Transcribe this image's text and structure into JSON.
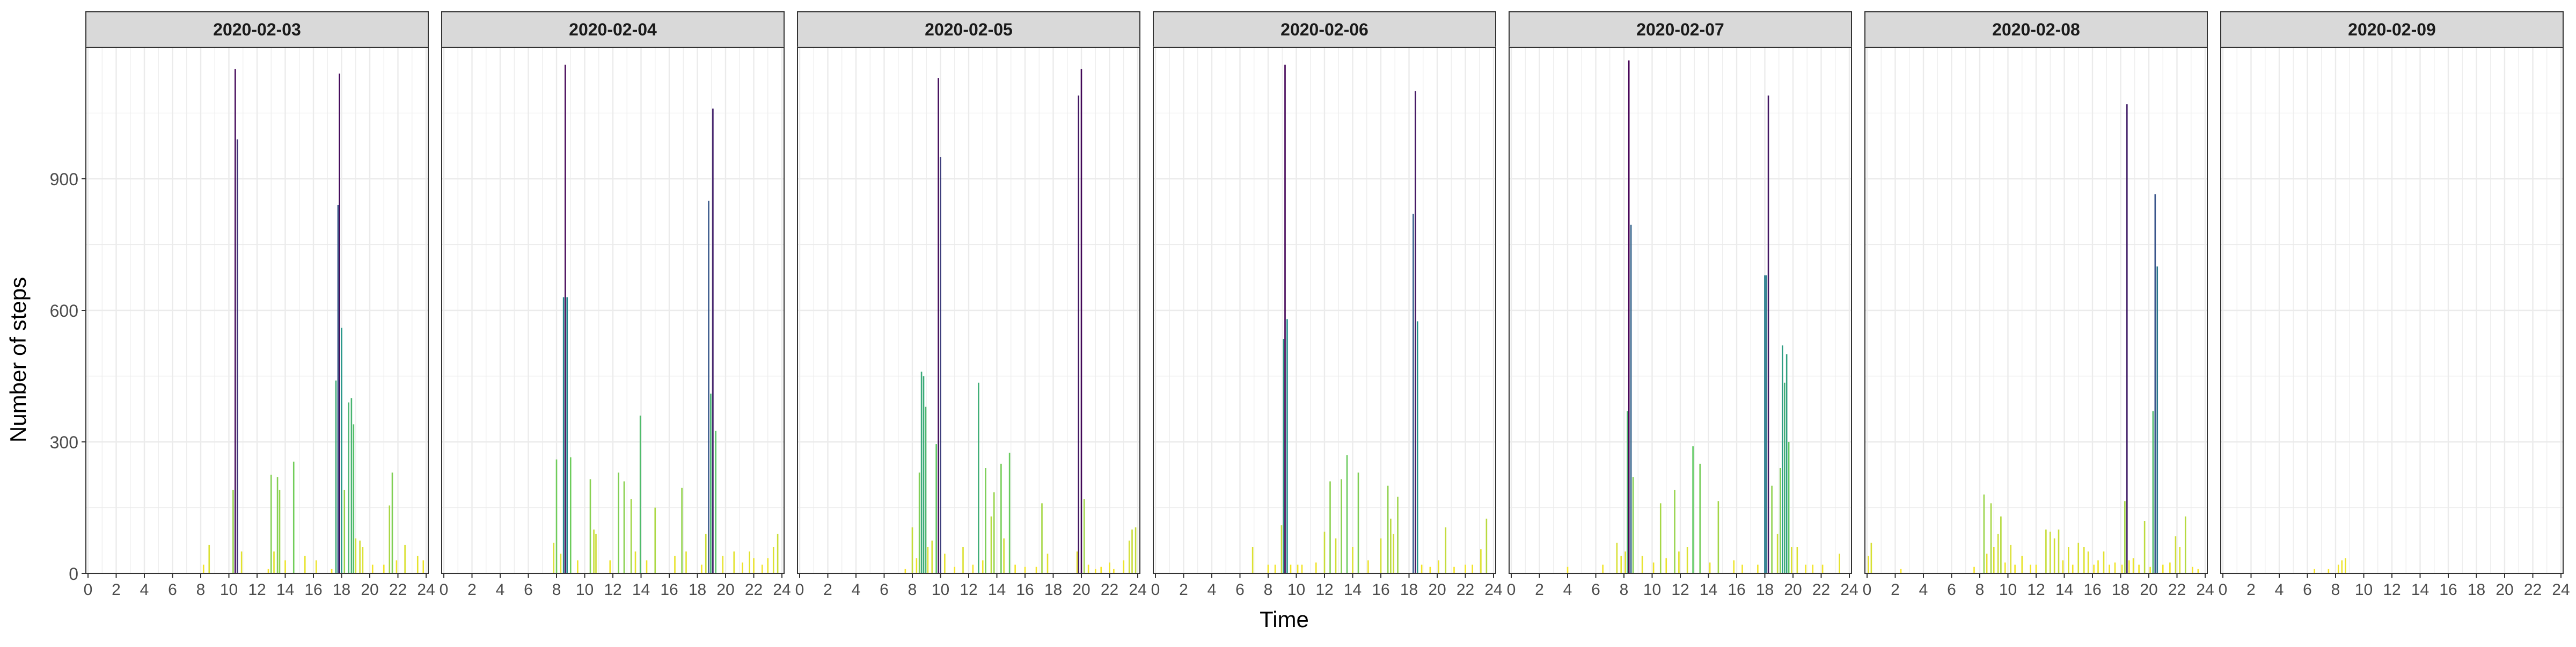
{
  "chart_data": {
    "type": "bar",
    "xlabel": "Time",
    "ylabel": "Number of steps",
    "xlim": [
      0,
      24
    ],
    "ylim": [
      0,
      1200
    ],
    "x_ticks": [
      0,
      2,
      4,
      6,
      8,
      10,
      12,
      14,
      16,
      18,
      20,
      22,
      24
    ],
    "y_ticks": [
      0,
      300,
      600,
      900
    ],
    "grid": true,
    "color_scale": "viridis (high step counts dark purple, low step counts yellow)",
    "colors": {
      "low": "#fde725",
      "high": "#440154",
      "strip_fill": "#d9d9d9",
      "grid": "#ebebeb"
    },
    "panels": [
      {
        "date": "2020-02-03",
        "bars": [
          [
            8.2,
            20
          ],
          [
            8.6,
            65
          ],
          [
            10.3,
            190
          ],
          [
            10.45,
            1150
          ],
          [
            10.6,
            990
          ],
          [
            10.9,
            50
          ],
          [
            12.8,
            10
          ],
          [
            13.0,
            225
          ],
          [
            13.2,
            50
          ],
          [
            13.45,
            220
          ],
          [
            13.6,
            190
          ],
          [
            14.0,
            30
          ],
          [
            14.6,
            255
          ],
          [
            15.4,
            40
          ],
          [
            16.2,
            30
          ],
          [
            17.3,
            10
          ],
          [
            17.6,
            440
          ],
          [
            17.75,
            840
          ],
          [
            17.85,
            1140
          ],
          [
            18.0,
            560
          ],
          [
            18.2,
            190
          ],
          [
            18.5,
            390
          ],
          [
            18.7,
            400
          ],
          [
            18.85,
            340
          ],
          [
            19.0,
            80
          ],
          [
            19.3,
            75
          ],
          [
            19.5,
            60
          ],
          [
            20.2,
            20
          ],
          [
            21.0,
            20
          ],
          [
            21.4,
            155
          ],
          [
            21.6,
            230
          ],
          [
            21.9,
            30
          ],
          [
            22.5,
            65
          ],
          [
            23.4,
            40
          ],
          [
            23.8,
            30
          ]
        ]
      },
      {
        "date": "2020-02-04",
        "bars": [
          [
            7.8,
            70
          ],
          [
            8.0,
            260
          ],
          [
            8.3,
            45
          ],
          [
            8.5,
            630
          ],
          [
            8.62,
            1160
          ],
          [
            8.75,
            630
          ],
          [
            9.0,
            265
          ],
          [
            9.5,
            30
          ],
          [
            10.4,
            215
          ],
          [
            10.65,
            100
          ],
          [
            10.8,
            90
          ],
          [
            11.8,
            30
          ],
          [
            12.4,
            230
          ],
          [
            12.8,
            210
          ],
          [
            13.3,
            170
          ],
          [
            13.6,
            50
          ],
          [
            13.95,
            360
          ],
          [
            14.4,
            30
          ],
          [
            15.0,
            150
          ],
          [
            16.4,
            40
          ],
          [
            16.9,
            195
          ],
          [
            17.2,
            50
          ],
          [
            18.3,
            20
          ],
          [
            18.6,
            90
          ],
          [
            18.8,
            850
          ],
          [
            18.95,
            410
          ],
          [
            19.1,
            1060
          ],
          [
            19.3,
            325
          ],
          [
            19.8,
            40
          ],
          [
            20.6,
            50
          ],
          [
            21.2,
            25
          ],
          [
            21.7,
            50
          ],
          [
            22.0,
            35
          ],
          [
            22.6,
            20
          ],
          [
            23.0,
            35
          ],
          [
            23.4,
            60
          ],
          [
            23.7,
            90
          ]
        ]
      },
      {
        "date": "2020-02-05",
        "bars": [
          [
            7.5,
            10
          ],
          [
            8.0,
            105
          ],
          [
            8.3,
            35
          ],
          [
            8.5,
            230
          ],
          [
            8.65,
            460
          ],
          [
            8.8,
            450
          ],
          [
            8.95,
            380
          ],
          [
            9.1,
            60
          ],
          [
            9.4,
            75
          ],
          [
            9.7,
            295
          ],
          [
            9.85,
            1130
          ],
          [
            10.0,
            950
          ],
          [
            10.3,
            45
          ],
          [
            11.0,
            15
          ],
          [
            11.6,
            60
          ],
          [
            12.3,
            20
          ],
          [
            12.7,
            435
          ],
          [
            13.0,
            30
          ],
          [
            13.2,
            240
          ],
          [
            13.6,
            130
          ],
          [
            13.8,
            185
          ],
          [
            14.3,
            250
          ],
          [
            14.5,
            80
          ],
          [
            14.9,
            275
          ],
          [
            15.3,
            20
          ],
          [
            16.0,
            15
          ],
          [
            16.8,
            15
          ],
          [
            17.2,
            160
          ],
          [
            17.6,
            45
          ],
          [
            19.7,
            50
          ],
          [
            19.8,
            1090
          ],
          [
            20.0,
            1150
          ],
          [
            20.2,
            170
          ],
          [
            20.5,
            20
          ],
          [
            21.0,
            10
          ],
          [
            21.4,
            15
          ],
          [
            22.0,
            25
          ],
          [
            22.3,
            10
          ],
          [
            23.0,
            30
          ],
          [
            23.4,
            75
          ],
          [
            23.6,
            100
          ],
          [
            23.85,
            105
          ]
        ]
      },
      {
        "date": "2020-02-06",
        "bars": [
          [
            6.9,
            60
          ],
          [
            8.0,
            20
          ],
          [
            8.5,
            20
          ],
          [
            8.95,
            110
          ],
          [
            9.1,
            535
          ],
          [
            9.2,
            1160
          ],
          [
            9.35,
            580
          ],
          [
            9.6,
            20
          ],
          [
            10.1,
            20
          ],
          [
            10.4,
            20
          ],
          [
            11.4,
            25
          ],
          [
            12.0,
            95
          ],
          [
            12.4,
            210
          ],
          [
            12.8,
            80
          ],
          [
            13.2,
            215
          ],
          [
            13.6,
            270
          ],
          [
            14.0,
            60
          ],
          [
            14.4,
            230
          ],
          [
            15.1,
            30
          ],
          [
            16.0,
            80
          ],
          [
            16.5,
            200
          ],
          [
            16.7,
            125
          ],
          [
            16.9,
            90
          ],
          [
            17.2,
            175
          ],
          [
            18.3,
            820
          ],
          [
            18.45,
            1100
          ],
          [
            18.6,
            575
          ],
          [
            18.9,
            20
          ],
          [
            19.5,
            15
          ],
          [
            20.1,
            30
          ],
          [
            20.6,
            105
          ],
          [
            21.2,
            15
          ],
          [
            22.0,
            20
          ],
          [
            22.5,
            20
          ],
          [
            23.1,
            55
          ],
          [
            23.5,
            125
          ]
        ]
      },
      {
        "date": "2020-02-07",
        "bars": [
          [
            4.0,
            15
          ],
          [
            6.5,
            20
          ],
          [
            7.5,
            70
          ],
          [
            7.8,
            40
          ],
          [
            8.1,
            50
          ],
          [
            8.25,
            370
          ],
          [
            8.35,
            1170
          ],
          [
            8.5,
            795
          ],
          [
            8.65,
            220
          ],
          [
            9.3,
            40
          ],
          [
            10.1,
            25
          ],
          [
            10.6,
            160
          ],
          [
            11.0,
            35
          ],
          [
            11.6,
            190
          ],
          [
            11.9,
            50
          ],
          [
            12.5,
            60
          ],
          [
            12.9,
            290
          ],
          [
            13.4,
            250
          ],
          [
            14.1,
            25
          ],
          [
            14.7,
            165
          ],
          [
            15.8,
            30
          ],
          [
            16.4,
            20
          ],
          [
            17.5,
            20
          ],
          [
            18.0,
            680
          ],
          [
            18.1,
            680
          ],
          [
            18.25,
            1090
          ],
          [
            18.5,
            200
          ],
          [
            18.9,
            90
          ],
          [
            19.1,
            240
          ],
          [
            19.25,
            520
          ],
          [
            19.4,
            435
          ],
          [
            19.55,
            500
          ],
          [
            19.7,
            300
          ],
          [
            19.9,
            60
          ],
          [
            20.3,
            60
          ],
          [
            20.9,
            20
          ],
          [
            21.4,
            20
          ],
          [
            22.1,
            20
          ],
          [
            23.3,
            45
          ]
        ]
      },
      {
        "date": "2020-02-08",
        "bars": [
          [
            0.1,
            40
          ],
          [
            0.3,
            70
          ],
          [
            2.4,
            10
          ],
          [
            7.6,
            15
          ],
          [
            8.3,
            180
          ],
          [
            8.5,
            45
          ],
          [
            8.8,
            160
          ],
          [
            9.0,
            60
          ],
          [
            9.3,
            90
          ],
          [
            9.5,
            130
          ],
          [
            9.8,
            25
          ],
          [
            10.2,
            65
          ],
          [
            10.5,
            20
          ],
          [
            11.0,
            40
          ],
          [
            11.6,
            20
          ],
          [
            12.0,
            20
          ],
          [
            12.7,
            100
          ],
          [
            13.0,
            95
          ],
          [
            13.3,
            80
          ],
          [
            13.6,
            100
          ],
          [
            13.9,
            30
          ],
          [
            14.3,
            60
          ],
          [
            14.6,
            20
          ],
          [
            15.0,
            70
          ],
          [
            15.4,
            60
          ],
          [
            15.7,
            50
          ],
          [
            16.1,
            20
          ],
          [
            16.4,
            30
          ],
          [
            16.8,
            50
          ],
          [
            17.2,
            20
          ],
          [
            17.6,
            25
          ],
          [
            18.1,
            20
          ],
          [
            18.3,
            165
          ],
          [
            18.45,
            1070
          ],
          [
            18.6,
            30
          ],
          [
            18.9,
            35
          ],
          [
            19.3,
            20
          ],
          [
            19.7,
            120
          ],
          [
            20.1,
            15
          ],
          [
            20.3,
            370
          ],
          [
            20.45,
            865
          ],
          [
            20.6,
            700
          ],
          [
            21.0,
            20
          ],
          [
            21.5,
            25
          ],
          [
            21.9,
            85
          ],
          [
            22.2,
            60
          ],
          [
            22.6,
            130
          ],
          [
            23.1,
            15
          ],
          [
            23.5,
            10
          ]
        ]
      },
      {
        "date": "2020-02-09",
        "bars": [
          [
            6.5,
            10
          ],
          [
            7.5,
            10
          ],
          [
            8.2,
            20
          ],
          [
            8.45,
            30
          ],
          [
            8.7,
            35
          ]
        ]
      }
    ]
  }
}
